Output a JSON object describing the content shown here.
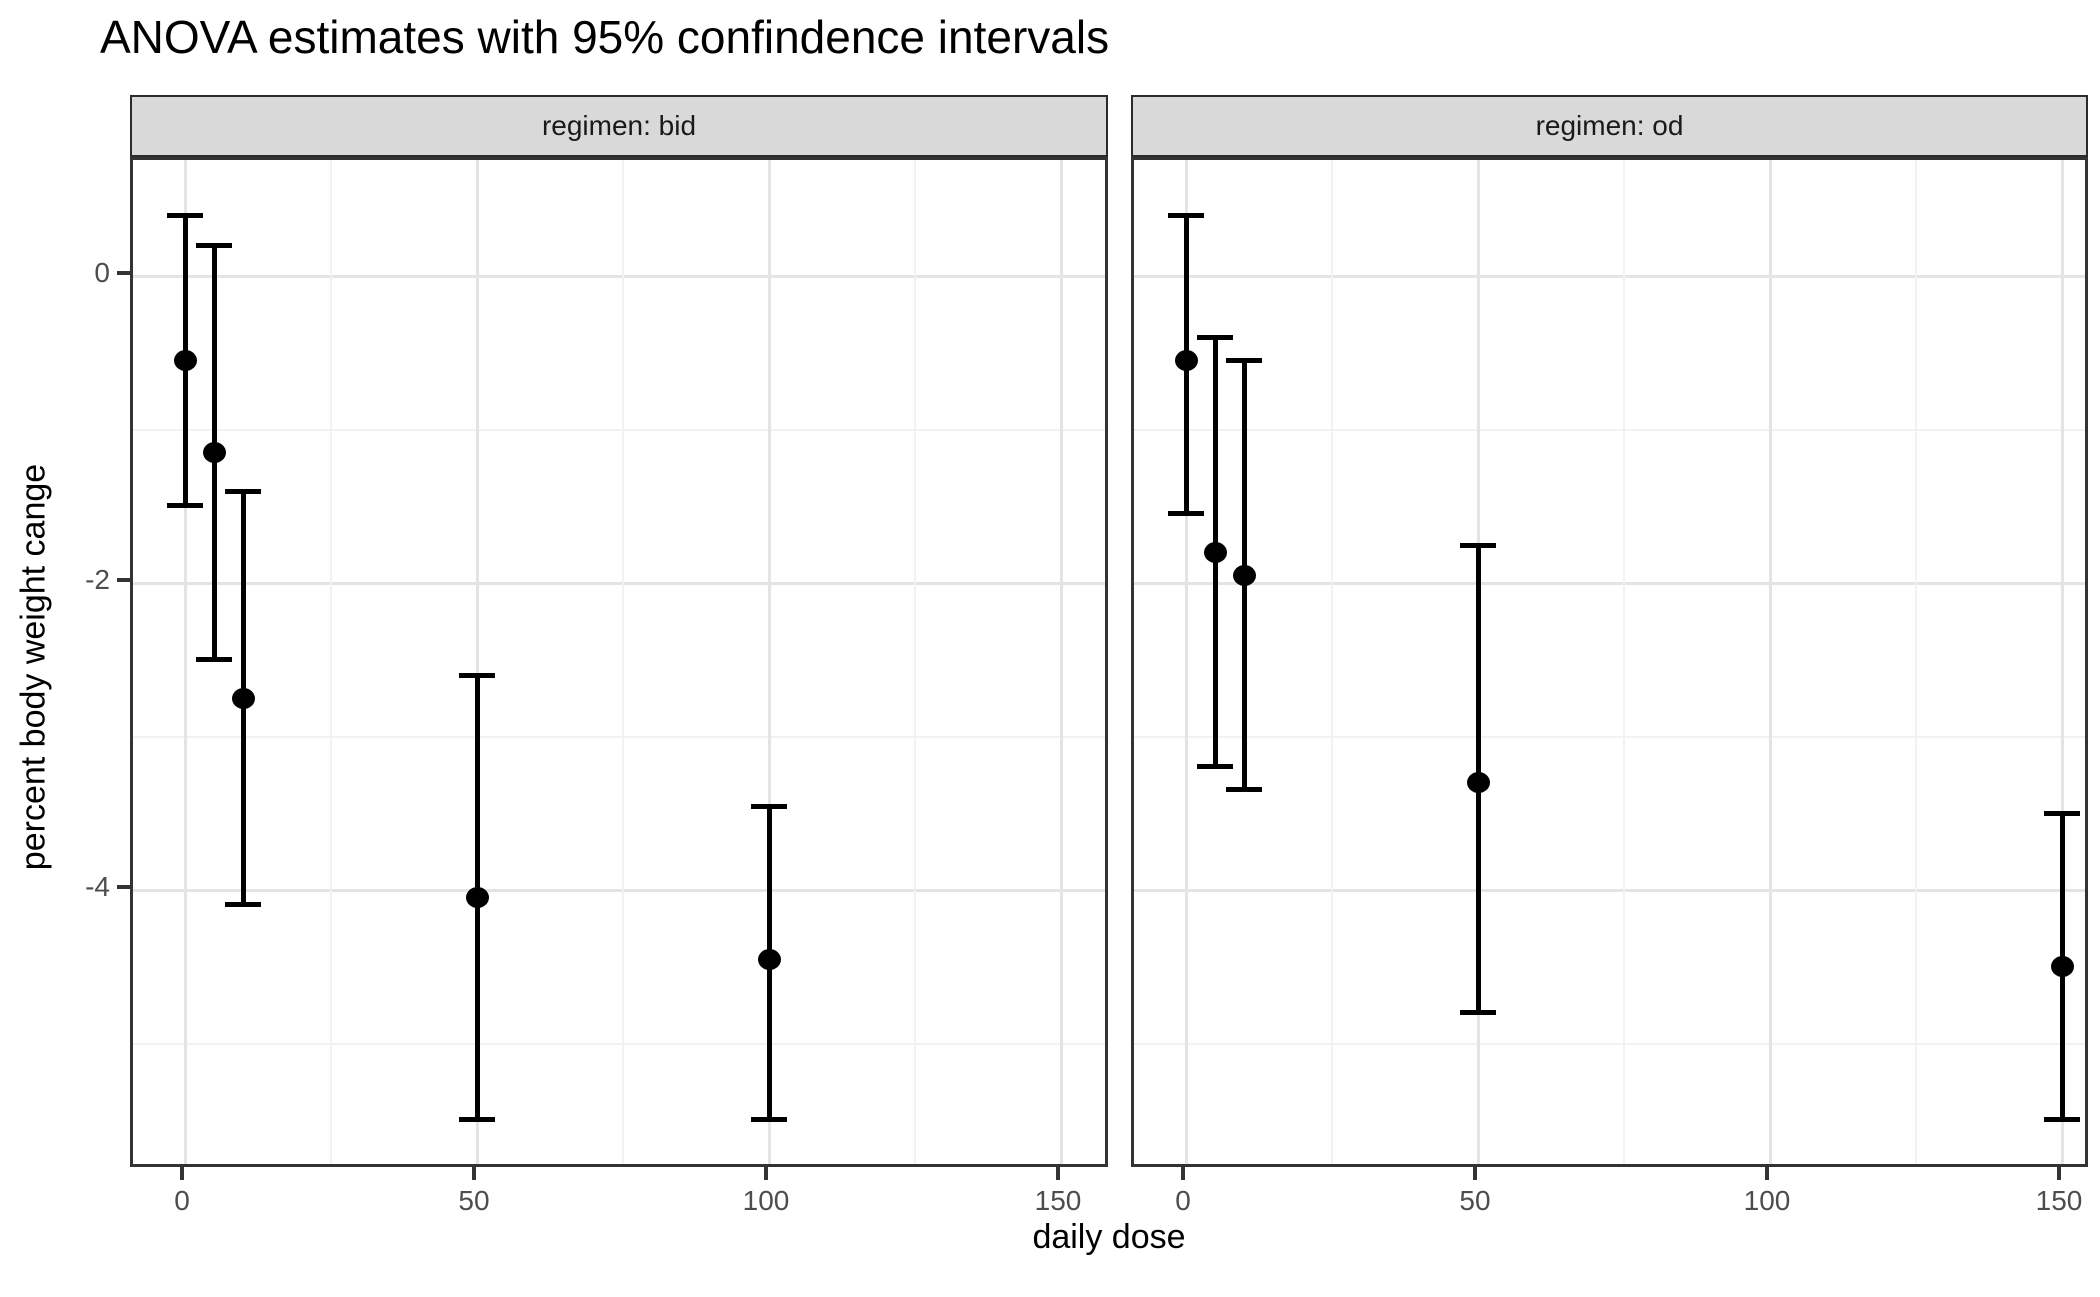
{
  "title": "ANOVA estimates with 95% confindence intervals",
  "x_axis_title": "daily dose",
  "y_axis_title": "percent body weight cange",
  "colors": {
    "point": "#000000",
    "error_bar": "#000000",
    "grid_major": "#e4e4e4",
    "grid_minor": "#f2f2f2",
    "panel_border": "#333333",
    "strip_background": "#d9d9d9",
    "strip_text": "#1a1a1a",
    "tick_label": "#4d4d4d",
    "title_text": "#000000"
  },
  "chart_data": {
    "type": "scatter",
    "subtype": "point-estimates-with-error-bars",
    "title": "ANOVA estimates with 95% confindence intervals",
    "xlabel": "daily dose",
    "ylabel": "percent body weight cange",
    "x_ticks": [
      0,
      50,
      100,
      150
    ],
    "x_minor": [
      25,
      75,
      125
    ],
    "y_ticks": [
      0,
      -2,
      -4
    ],
    "y_minor": [
      -1,
      -3,
      -5
    ],
    "xlim": [
      -9,
      158
    ],
    "ylim": [
      -5.8,
      0.75
    ],
    "grid": "on",
    "legend": "none",
    "facets": [
      {
        "label": "regimen: bid",
        "points": [
          {
            "x": 0,
            "y": -0.55,
            "lo": -1.5,
            "hi": 0.4
          },
          {
            "x": 5,
            "y": -1.15,
            "lo": -2.5,
            "hi": 0.2
          },
          {
            "x": 10,
            "y": -2.75,
            "lo": -4.1,
            "hi": -1.4
          },
          {
            "x": 50,
            "y": -4.05,
            "lo": -5.5,
            "hi": -2.6
          },
          {
            "x": 100,
            "y": -4.45,
            "lo": -5.5,
            "hi": -3.45
          }
        ]
      },
      {
        "label": "regimen: od",
        "points": [
          {
            "x": 0,
            "y": -0.55,
            "lo": -1.55,
            "hi": 0.4
          },
          {
            "x": 5,
            "y": -1.8,
            "lo": -3.2,
            "hi": -0.4
          },
          {
            "x": 10,
            "y": -1.95,
            "lo": -3.35,
            "hi": -0.55
          },
          {
            "x": 50,
            "y": -3.3,
            "lo": -4.8,
            "hi": -1.75
          },
          {
            "x": 150,
            "y": -4.5,
            "lo": -5.5,
            "hi": -3.5
          }
        ]
      }
    ]
  }
}
